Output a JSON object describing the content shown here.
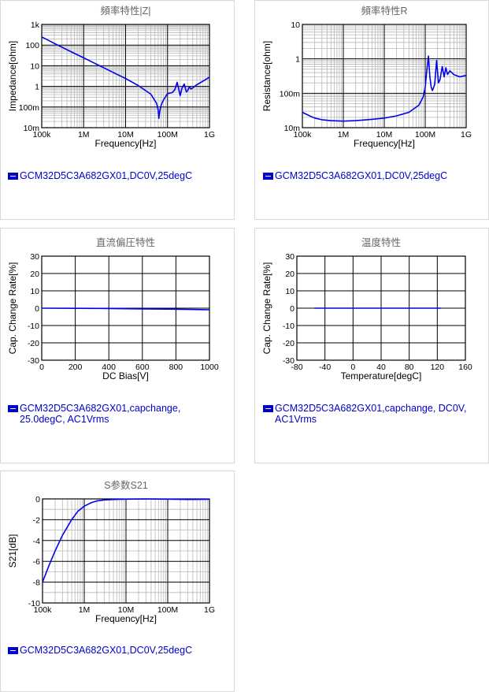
{
  "chart_data": [
    {
      "id": "impedance",
      "type": "line",
      "title": "頻率特性|Z|",
      "xlabel": "Frequency[Hz]",
      "ylabel": "Impedance[ohm]",
      "xscale": "log",
      "yscale": "log",
      "xlim": [
        100000,
        1000000000
      ],
      "ylim": [
        0.01,
        1000
      ],
      "xticks": [
        100000,
        1000000,
        10000000,
        100000000,
        1000000000
      ],
      "xtick_labels": [
        "100k",
        "1M",
        "10M",
        "100M",
        "1G"
      ],
      "yticks": [
        0.01,
        0.1,
        1,
        10,
        100,
        1000
      ],
      "ytick_labels": [
        "10m",
        "100m",
        "1",
        "10",
        "100",
        "1k"
      ],
      "grid": true,
      "legend": "GCM32D5C3A682GX01,DC0V,25degC",
      "series": [
        {
          "x": [
            100000,
            200000,
            500000,
            1000000,
            2000000,
            5000000,
            10000000,
            20000000,
            40000000,
            55000000,
            60000000,
            62000000,
            65000000,
            70000000,
            80000000,
            100000000,
            130000000,
            150000000,
            170000000,
            200000000,
            220000000,
            250000000,
            280000000,
            300000000,
            330000000,
            360000000,
            400000000,
            500000000,
            700000000,
            1000000000
          ],
          "y": [
            250,
            120,
            48,
            24,
            12,
            4.8,
            2.4,
            1.1,
            0.42,
            0.15,
            0.07,
            0.028,
            0.06,
            0.12,
            0.22,
            0.45,
            0.5,
            0.7,
            1.6,
            0.35,
            0.8,
            1.3,
            0.55,
            0.6,
            0.95,
            0.75,
            0.85,
            1.2,
            1.8,
            2.8
          ]
        }
      ]
    },
    {
      "id": "resistance",
      "type": "line",
      "title": "頻率特性R",
      "xlabel": "Frequency[Hz]",
      "ylabel": "Resistance[ohm]",
      "xscale": "log",
      "yscale": "log",
      "xlim": [
        100000,
        1000000000
      ],
      "ylim": [
        0.01,
        10
      ],
      "xticks": [
        100000,
        1000000,
        10000000,
        100000000,
        1000000000
      ],
      "xtick_labels": [
        "100k",
        "1M",
        "10M",
        "100M",
        "1G"
      ],
      "yticks": [
        0.01,
        0.1,
        1,
        10
      ],
      "ytick_labels": [
        "10m",
        "100m",
        "1",
        "10"
      ],
      "grid": true,
      "legend": "GCM32D5C3A682GX01,DC0V,25degC",
      "series": [
        {
          "x": [
            100000,
            150000,
            200000,
            300000,
            500000,
            1000000,
            2000000,
            5000000,
            10000000,
            20000000,
            40000000,
            70000000,
            90000000,
            100000000,
            110000000,
            120000000,
            130000000,
            140000000,
            150000000,
            170000000,
            190000000,
            210000000,
            230000000,
            260000000,
            290000000,
            320000000,
            350000000,
            400000000,
            500000000,
            700000000,
            1000000000
          ],
          "y": [
            0.028,
            0.022,
            0.019,
            0.017,
            0.016,
            0.0155,
            0.016,
            0.0175,
            0.019,
            0.022,
            0.028,
            0.045,
            0.08,
            0.15,
            0.5,
            1.2,
            0.3,
            0.15,
            0.12,
            0.18,
            0.9,
            0.2,
            0.25,
            0.6,
            0.3,
            0.55,
            0.35,
            0.45,
            0.35,
            0.3,
            0.33
          ]
        }
      ]
    },
    {
      "id": "dcbias",
      "type": "line",
      "title": "直流偏圧特性",
      "xlabel": "DC Bias[V]",
      "ylabel": "Cap. Change Rate[%]",
      "xscale": "linear",
      "yscale": "linear",
      "xlim": [
        0,
        1000
      ],
      "ylim": [
        -30,
        30
      ],
      "xticks": [
        0,
        200,
        400,
        600,
        800,
        1000
      ],
      "xtick_labels": [
        "0",
        "200",
        "400",
        "600",
        "800",
        "1000"
      ],
      "yticks": [
        -30,
        -20,
        -10,
        0,
        10,
        20,
        30
      ],
      "ytick_labels": [
        "-30",
        "-20",
        "-10",
        "0",
        "10",
        "20",
        "30"
      ],
      "grid": true,
      "legend": "GCM32D5C3A682GX01,capchange,\n25.0degC, AC1Vrms",
      "series": [
        {
          "x": [
            0,
            200,
            400,
            600,
            800,
            1000
          ],
          "y": [
            0,
            -0.1,
            -0.2,
            -0.4,
            -0.6,
            -0.9
          ]
        }
      ]
    },
    {
      "id": "temperature",
      "type": "line",
      "title": "温度特性",
      "xlabel": "Temperature[degC]",
      "ylabel": "Cap. Change Rate[%]",
      "xscale": "linear",
      "yscale": "linear",
      "xlim": [
        -80,
        160
      ],
      "ylim": [
        -30,
        30
      ],
      "xticks": [
        -80,
        -40,
        0,
        40,
        80,
        120,
        160
      ],
      "xtick_labels": [
        "-80",
        "-40",
        "0",
        "40",
        "80",
        "120",
        "160"
      ],
      "yticks": [
        -30,
        -20,
        -10,
        0,
        10,
        20,
        30
      ],
      "ytick_labels": [
        "-30",
        "-20",
        "-10",
        "0",
        "10",
        "20",
        "30"
      ],
      "grid": true,
      "legend": "GCM32D5C3A682GX01,capchange, DC0V,\nAC1Vrms",
      "series": [
        {
          "x": [
            -55,
            -20,
            25,
            85,
            125
          ],
          "y": [
            0,
            0,
            0,
            0,
            0
          ]
        }
      ]
    },
    {
      "id": "s21",
      "type": "line",
      "title": "S参数S21",
      "xlabel": "Frequency[Hz]",
      "ylabel": "S21[dB]",
      "xscale": "log",
      "yscale": "linear",
      "xlim": [
        100000,
        1000000000
      ],
      "ylim": [
        -10,
        0
      ],
      "xticks": [
        100000,
        1000000,
        10000000,
        100000000,
        1000000000
      ],
      "xtick_labels": [
        "100k",
        "1M",
        "10M",
        "100M",
        "1G"
      ],
      "yticks": [
        -10,
        -8,
        -6,
        -4,
        -2,
        0
      ],
      "ytick_labels": [
        "-10",
        "-8",
        "-6",
        "-4",
        "-2",
        "0"
      ],
      "grid": true,
      "legend": "GCM32D5C3A682GX01,DC0V,25degC",
      "series": [
        {
          "x": [
            100000,
            150000,
            200000,
            300000,
            500000,
            700000,
            1000000,
            1500000,
            2000000,
            3000000,
            5000000,
            10000000,
            30000000,
            100000000,
            300000000,
            1000000000
          ],
          "y": [
            -8.0,
            -6.2,
            -5.0,
            -3.5,
            -2.0,
            -1.2,
            -0.7,
            -0.35,
            -0.2,
            -0.1,
            -0.05,
            -0.02,
            -0.01,
            -0.02,
            -0.05,
            -0.03
          ]
        }
      ]
    }
  ],
  "colors": {
    "series": "#0000ee",
    "legend": "#0000cc",
    "grid_major": "#000000",
    "grid_minor": "#b8b8b8"
  }
}
